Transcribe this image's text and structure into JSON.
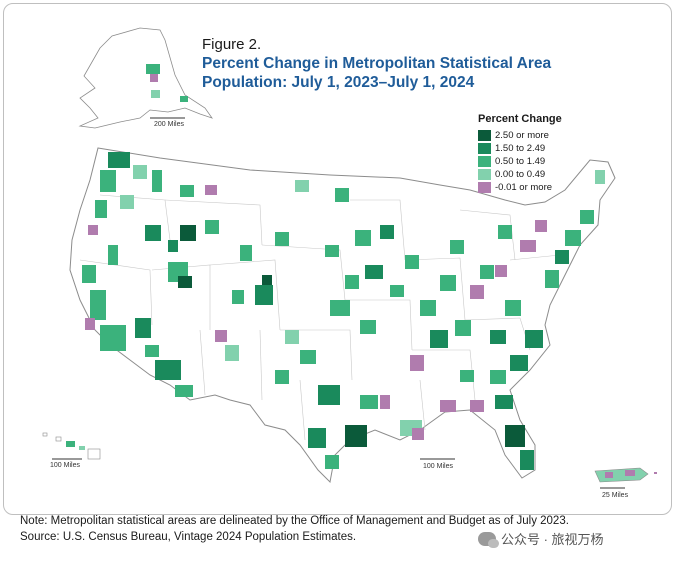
{
  "figure": {
    "label": "Figure 2.",
    "title_line1": "Percent Change in Metropolitan Statistical Area",
    "title_line2": "Population: July 1, 2023–July 1, 2024"
  },
  "legend": {
    "title": "Percent Change",
    "items": [
      {
        "label": "2.50 or more",
        "color": "#0b5a3a"
      },
      {
        "label": "1.50 to 2.49",
        "color": "#1a8a5c"
      },
      {
        "label": "0.50 to 1.49",
        "color": "#3bb27c"
      },
      {
        "label": "0.00 to 0.49",
        "color": "#82d1ad"
      },
      {
        "label": "-0.01 or more",
        "color": "#b07cae"
      }
    ]
  },
  "scale_bars": {
    "alaska": "200 Miles",
    "hawaii": "100 Miles",
    "conus": "100 Miles",
    "puerto_rico": "25 Miles"
  },
  "footer": {
    "note": "Note: Metropolitan statistical areas are delineated by the Office of Management and Budget as of July 2023.",
    "source": "Source: U.S. Census Bureau, Vintage 2024 Population Estimates."
  },
  "watermark": "公众号 · 旅视万杨"
}
